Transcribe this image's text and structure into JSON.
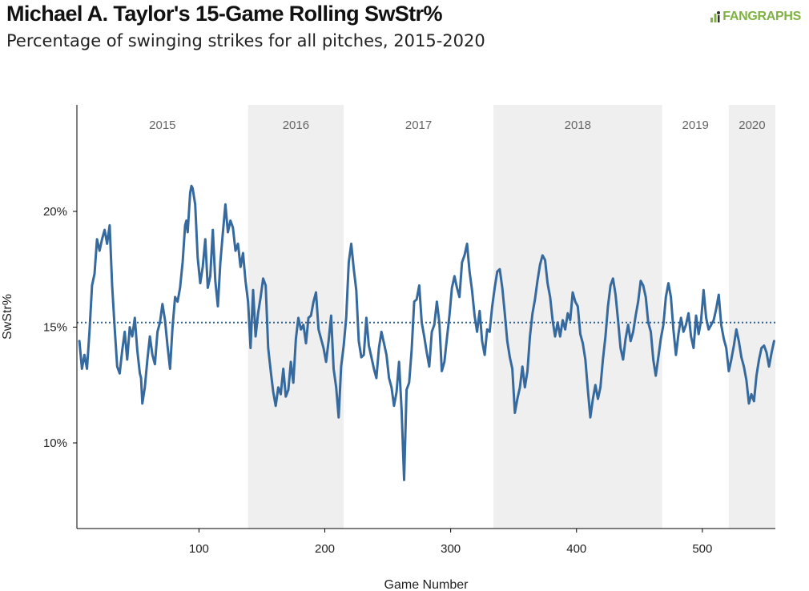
{
  "header": {
    "title": "Michael A. Taylor's 15-Game Rolling SwStr%",
    "subtitle": "Percentage of swinging strikes for all pitches, 2015-2020",
    "logo_text": "FANGRAPHS",
    "logo_color": "#7fb241"
  },
  "chart_data": {
    "type": "line",
    "title": "Michael A. Taylor's 15-Game Rolling SwStr%",
    "subtitle": "Percentage of swinging strikes for all pitches, 2015-2020",
    "xlabel": "Game Number",
    "ylabel": "SwStr%",
    "xlim": [
      3,
      558
    ],
    "ylim": [
      6.3,
      24.6
    ],
    "x_ticks": [
      100,
      200,
      300,
      400,
      500
    ],
    "x_tick_labels": [
      "100",
      "200",
      "300",
      "400",
      "500"
    ],
    "y_ticks": [
      10,
      15,
      20
    ],
    "y_tick_labels": [
      "10%",
      "15%",
      "20%"
    ],
    "reference_line": {
      "value": 15.2,
      "style": "dotted"
    },
    "seasons": [
      {
        "label": "2015",
        "start": 3,
        "end": 139,
        "shaded": false
      },
      {
        "label": "2016",
        "start": 139,
        "end": 215,
        "shaded": true
      },
      {
        "label": "2017",
        "start": 215,
        "end": 334,
        "shaded": false
      },
      {
        "label": "2018",
        "start": 334,
        "end": 468,
        "shaded": true
      },
      {
        "label": "2019",
        "start": 468,
        "end": 521,
        "shaded": false
      },
      {
        "label": "2020",
        "start": 521,
        "end": 558,
        "shaded": true
      }
    ],
    "colors": {
      "line": "#366a9e",
      "shade": "#efefef",
      "reference": "#2e5d8e"
    },
    "grid": false,
    "series": [
      {
        "name": "",
        "points": [
          [
            5,
            14.4
          ],
          [
            7,
            13.2
          ],
          [
            9,
            13.8
          ],
          [
            11,
            13.2
          ],
          [
            13,
            14.8
          ],
          [
            15,
            16.8
          ],
          [
            17,
            17.3
          ],
          [
            19,
            18.8
          ],
          [
            21,
            18.3
          ],
          [
            23,
            18.8
          ],
          [
            25,
            19.2
          ],
          [
            27,
            18.6
          ],
          [
            29,
            19.4
          ],
          [
            31,
            16.8
          ],
          [
            33,
            15
          ],
          [
            35,
            13.3
          ],
          [
            37,
            13
          ],
          [
            39,
            14
          ],
          [
            41,
            14.8
          ],
          [
            43,
            13.6
          ],
          [
            45,
            15
          ],
          [
            47,
            14.6
          ],
          [
            49,
            15.4
          ],
          [
            51,
            14
          ],
          [
            53,
            13
          ],
          [
            54,
            12.8
          ],
          [
            55,
            11.7
          ],
          [
            57,
            12.4
          ],
          [
            59,
            13.6
          ],
          [
            61,
            14.6
          ],
          [
            63,
            13.8
          ],
          [
            65,
            13.4
          ],
          [
            67,
            14.8
          ],
          [
            69,
            15.2
          ],
          [
            71,
            16
          ],
          [
            73,
            15.3
          ],
          [
            75,
            14.2
          ],
          [
            77,
            13.2
          ],
          [
            79,
            15
          ],
          [
            81,
            16.3
          ],
          [
            83,
            16.1
          ],
          [
            85,
            16.7
          ],
          [
            87,
            17.8
          ],
          [
            89,
            19.4
          ],
          [
            90,
            19.6
          ],
          [
            91,
            19.1
          ],
          [
            93,
            20.8
          ],
          [
            94,
            21.1
          ],
          [
            95,
            21
          ],
          [
            97,
            20.3
          ],
          [
            99,
            18
          ],
          [
            101,
            16.9
          ],
          [
            103,
            17.6
          ],
          [
            105,
            18.8
          ],
          [
            107,
            16.7
          ],
          [
            109,
            17.2
          ],
          [
            111,
            19.2
          ],
          [
            113,
            17
          ],
          [
            115,
            15.9
          ],
          [
            117,
            17.8
          ],
          [
            119,
            19.1
          ],
          [
            121,
            20.3
          ],
          [
            123,
            19.1
          ],
          [
            125,
            19.6
          ],
          [
            127,
            19.3
          ],
          [
            129,
            18.3
          ],
          [
            131,
            18.6
          ],
          [
            133,
            17.6
          ],
          [
            135,
            18.2
          ],
          [
            137,
            17
          ],
          [
            139,
            16.1
          ],
          [
            141,
            14.1
          ],
          [
            143,
            16.6
          ],
          [
            145,
            14.6
          ],
          [
            147,
            15.6
          ],
          [
            149,
            16.3
          ],
          [
            151,
            17.1
          ],
          [
            153,
            16.8
          ],
          [
            155,
            14.1
          ],
          [
            157,
            13.1
          ],
          [
            159,
            12.2
          ],
          [
            161,
            11.6
          ],
          [
            163,
            12.4
          ],
          [
            165,
            12.1
          ],
          [
            167,
            13.2
          ],
          [
            169,
            12
          ],
          [
            171,
            12.3
          ],
          [
            173,
            13.5
          ],
          [
            175,
            12.6
          ],
          [
            177,
            14.5
          ],
          [
            179,
            15.4
          ],
          [
            181,
            14.9
          ],
          [
            183,
            15.1
          ],
          [
            185,
            14.3
          ],
          [
            187,
            15.4
          ],
          [
            189,
            15.5
          ],
          [
            191,
            16.1
          ],
          [
            193,
            16.5
          ],
          [
            195,
            14.9
          ],
          [
            197,
            14.5
          ],
          [
            199,
            14.1
          ],
          [
            201,
            13.5
          ],
          [
            203,
            14.4
          ],
          [
            205,
            15.5
          ],
          [
            207,
            13.2
          ],
          [
            209,
            12.4
          ],
          [
            211,
            11.1
          ],
          [
            213,
            13.3
          ],
          [
            215,
            14.2
          ],
          [
            217,
            15.4
          ],
          [
            219,
            17.8
          ],
          [
            221,
            18.6
          ],
          [
            223,
            17.5
          ],
          [
            225,
            16.6
          ],
          [
            227,
            14.4
          ],
          [
            229,
            13.7
          ],
          [
            231,
            13.8
          ],
          [
            233,
            15.4
          ],
          [
            235,
            14.2
          ],
          [
            237,
            13.7
          ],
          [
            239,
            13.2
          ],
          [
            241,
            12.8
          ],
          [
            243,
            14.1
          ],
          [
            245,
            14.8
          ],
          [
            247,
            14.3
          ],
          [
            249,
            13.8
          ],
          [
            251,
            12.8
          ],
          [
            253,
            12.4
          ],
          [
            255,
            11.6
          ],
          [
            257,
            12.2
          ],
          [
            259,
            13.5
          ],
          [
            261,
            11.4
          ],
          [
            263,
            8.4
          ],
          [
            265,
            12.3
          ],
          [
            267,
            12.6
          ],
          [
            269,
            14
          ],
          [
            271,
            16.1
          ],
          [
            273,
            16.2
          ],
          [
            275,
            16.8
          ],
          [
            277,
            15.2
          ],
          [
            279,
            14.6
          ],
          [
            281,
            13.9
          ],
          [
            283,
            13.3
          ],
          [
            285,
            14.8
          ],
          [
            287,
            15.1
          ],
          [
            289,
            16.1
          ],
          [
            291,
            15.2
          ],
          [
            293,
            13.1
          ],
          [
            295,
            13.5
          ],
          [
            297,
            14.5
          ],
          [
            299,
            15.5
          ],
          [
            301,
            16.7
          ],
          [
            303,
            17.2
          ],
          [
            305,
            16.7
          ],
          [
            307,
            16.3
          ],
          [
            309,
            17.8
          ],
          [
            311,
            18.1
          ],
          [
            313,
            18.6
          ],
          [
            315,
            17.4
          ],
          [
            317,
            16.6
          ],
          [
            319,
            15.5
          ],
          [
            321,
            14.8
          ],
          [
            323,
            15.7
          ],
          [
            325,
            14.4
          ],
          [
            327,
            13.8
          ],
          [
            329,
            14.9
          ],
          [
            331,
            14.8
          ],
          [
            333,
            15.9
          ],
          [
            335,
            16.7
          ],
          [
            337,
            17.4
          ],
          [
            339,
            17.5
          ],
          [
            341,
            16.7
          ],
          [
            343,
            15.6
          ],
          [
            345,
            14.4
          ],
          [
            347,
            13.7
          ],
          [
            349,
            13.2
          ],
          [
            351,
            11.3
          ],
          [
            353,
            11.9
          ],
          [
            355,
            12.4
          ],
          [
            357,
            13.3
          ],
          [
            359,
            12.4
          ],
          [
            361,
            13.1
          ],
          [
            363,
            14.6
          ],
          [
            365,
            15.6
          ],
          [
            367,
            16.2
          ],
          [
            369,
            17
          ],
          [
            371,
            17.7
          ],
          [
            373,
            18.1
          ],
          [
            375,
            17.9
          ],
          [
            377,
            16.9
          ],
          [
            379,
            16.3
          ],
          [
            381,
            15.3
          ],
          [
            383,
            14.6
          ],
          [
            385,
            15.2
          ],
          [
            387,
            14.6
          ],
          [
            389,
            15.3
          ],
          [
            391,
            14.9
          ],
          [
            393,
            15.6
          ],
          [
            395,
            15.3
          ],
          [
            397,
            16.5
          ],
          [
            399,
            16.1
          ],
          [
            401,
            15.9
          ],
          [
            403,
            14.7
          ],
          [
            405,
            14.3
          ],
          [
            407,
            13.6
          ],
          [
            409,
            12.3
          ],
          [
            411,
            11.1
          ],
          [
            413,
            11.9
          ],
          [
            415,
            12.5
          ],
          [
            417,
            11.9
          ],
          [
            419,
            12.4
          ],
          [
            421,
            13.6
          ],
          [
            423,
            14.6
          ],
          [
            425,
            15.9
          ],
          [
            427,
            16.8
          ],
          [
            429,
            17.1
          ],
          [
            431,
            16.4
          ],
          [
            433,
            15.3
          ],
          [
            435,
            14.1
          ],
          [
            437,
            13.6
          ],
          [
            439,
            14.5
          ],
          [
            441,
            15.1
          ],
          [
            443,
            14.4
          ],
          [
            445,
            14.8
          ],
          [
            447,
            15.5
          ],
          [
            449,
            16.1
          ],
          [
            451,
            17
          ],
          [
            453,
            16.8
          ],
          [
            455,
            16.3
          ],
          [
            457,
            15.2
          ],
          [
            459,
            14.8
          ],
          [
            461,
            13.6
          ],
          [
            463,
            12.9
          ],
          [
            465,
            13.7
          ],
          [
            467,
            14.5
          ],
          [
            469,
            15.1
          ],
          [
            471,
            16.3
          ],
          [
            473,
            16.9
          ],
          [
            475,
            16.3
          ],
          [
            477,
            14.9
          ],
          [
            479,
            13.8
          ],
          [
            481,
            14.7
          ],
          [
            483,
            15.4
          ],
          [
            485,
            14.8
          ],
          [
            487,
            15.1
          ],
          [
            489,
            15.6
          ],
          [
            491,
            14.6
          ],
          [
            493,
            14.1
          ],
          [
            495,
            15.5
          ],
          [
            497,
            14.7
          ],
          [
            499,
            15.3
          ],
          [
            501,
            16.6
          ],
          [
            503,
            15.4
          ],
          [
            505,
            14.9
          ],
          [
            507,
            15.1
          ],
          [
            509,
            15.3
          ],
          [
            511,
            15.8
          ],
          [
            513,
            16.4
          ],
          [
            515,
            15.1
          ],
          [
            517,
            14.5
          ],
          [
            519,
            14.1
          ],
          [
            521,
            13.1
          ],
          [
            523,
            13.6
          ],
          [
            525,
            14.2
          ],
          [
            527,
            14.9
          ],
          [
            529,
            14.4
          ],
          [
            531,
            13.7
          ],
          [
            533,
            13.3
          ],
          [
            535,
            12.7
          ],
          [
            537,
            11.7
          ],
          [
            539,
            12.1
          ],
          [
            541,
            11.8
          ],
          [
            543,
            12.9
          ],
          [
            545,
            13.6
          ],
          [
            547,
            14.1
          ],
          [
            549,
            14.2
          ],
          [
            551,
            13.9
          ],
          [
            553,
            13.3
          ],
          [
            555,
            13.9
          ],
          [
            557,
            14.4
          ]
        ]
      }
    ]
  }
}
